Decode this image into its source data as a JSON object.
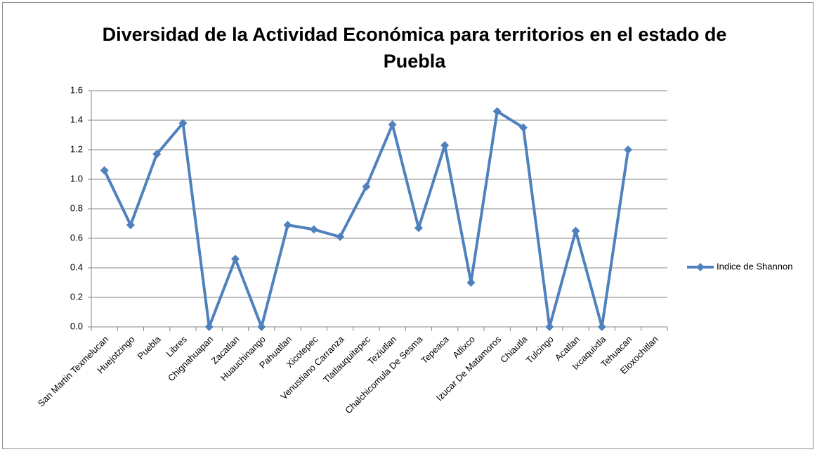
{
  "chart_data": {
    "type": "line",
    "title": "Diversidad de la Actividad Económica para territorios en el estado de Puebla",
    "categories": [
      "San Martin Texmelucan",
      "Huejotzingo",
      "Puebla",
      "Libres",
      "Chignahuapan",
      "Zacatlan",
      "Huauchinango",
      "Pahuatlan",
      "Xicotepec",
      "Venustiano Carranza",
      "Tlatlauquitepec",
      "Teziutlan",
      "Chalchicomula De Sesma",
      "Tepeaca",
      "Atlixco",
      "Izucar De Matamoros",
      "Chiautla",
      "Tulcingo",
      "Acatlan",
      "Ixcaquixtla",
      "Tehuacan",
      "Eloxochitlan"
    ],
    "series": [
      {
        "name": "Indice de Shannon",
        "color": "#4f81bd",
        "values": [
          1.06,
          0.69,
          1.17,
          1.38,
          0,
          0.46,
          0,
          0.69,
          0.66,
          0.61,
          0.95,
          1.37,
          0.67,
          1.23,
          0.3,
          1.46,
          1.35,
          0,
          0.65,
          0,
          1.2,
          null
        ]
      }
    ],
    "ylim": [
      0,
      1.6
    ],
    "yticks": [
      {
        "value": 0,
        "label": "0.0"
      },
      0.2,
      0.4,
      0.6,
      0.8,
      {
        "value": 1,
        "label": "1.0"
      },
      1.2,
      1.4,
      1.6
    ],
    "grid": true,
    "legend": "right"
  }
}
